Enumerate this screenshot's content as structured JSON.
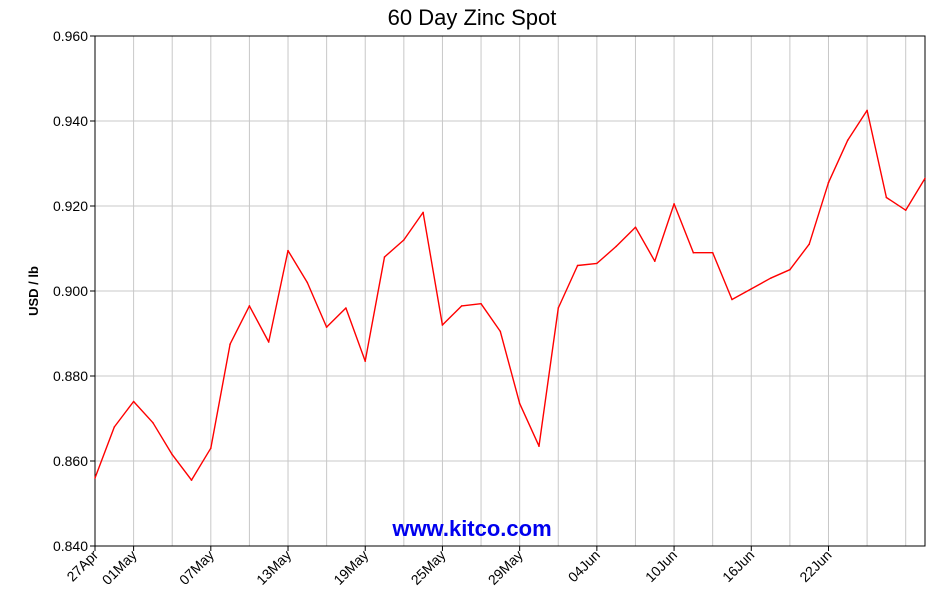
{
  "chart_data": {
    "type": "line",
    "title": "60 Day Zinc Spot",
    "ylabel": "USD / lb",
    "xlabel": "",
    "ylim": [
      0.84,
      0.96
    ],
    "yticks": [
      "0.840",
      "0.860",
      "0.880",
      "0.900",
      "0.920",
      "0.940",
      "0.960"
    ],
    "xtick_labels": [
      "27Apr",
      "01May",
      "07May",
      "13May",
      "19May",
      "25May",
      "29May",
      "04Jun",
      "10Jun",
      "16Jun",
      "22Jun"
    ],
    "xtick_indices": [
      0,
      2,
      6,
      10,
      14,
      18,
      22,
      26,
      30,
      34,
      38
    ],
    "grid": true,
    "watermark": "www.kitco.com",
    "colors": {
      "line": "#ff0000",
      "watermark": "#0000ee",
      "grid": "#c8c8c8"
    },
    "series": [
      {
        "values": [
          0.856,
          0.868,
          0.874,
          0.869,
          0.8615,
          0.8555,
          0.863,
          0.8875,
          0.8965,
          0.888,
          0.9095,
          0.902,
          0.8915,
          0.896,
          0.8835,
          0.908,
          0.912,
          0.9185,
          0.892,
          0.8965,
          0.897,
          0.8905,
          0.8735,
          0.8635,
          0.896,
          0.906,
          0.9065,
          0.9105,
          0.915,
          0.907,
          0.9205,
          0.909,
          0.909,
          0.898,
          0.9005,
          0.903,
          0.905,
          0.911,
          0.9255,
          0.9355,
          0.9425,
          0.922,
          0.919,
          0.9265
        ]
      }
    ]
  }
}
